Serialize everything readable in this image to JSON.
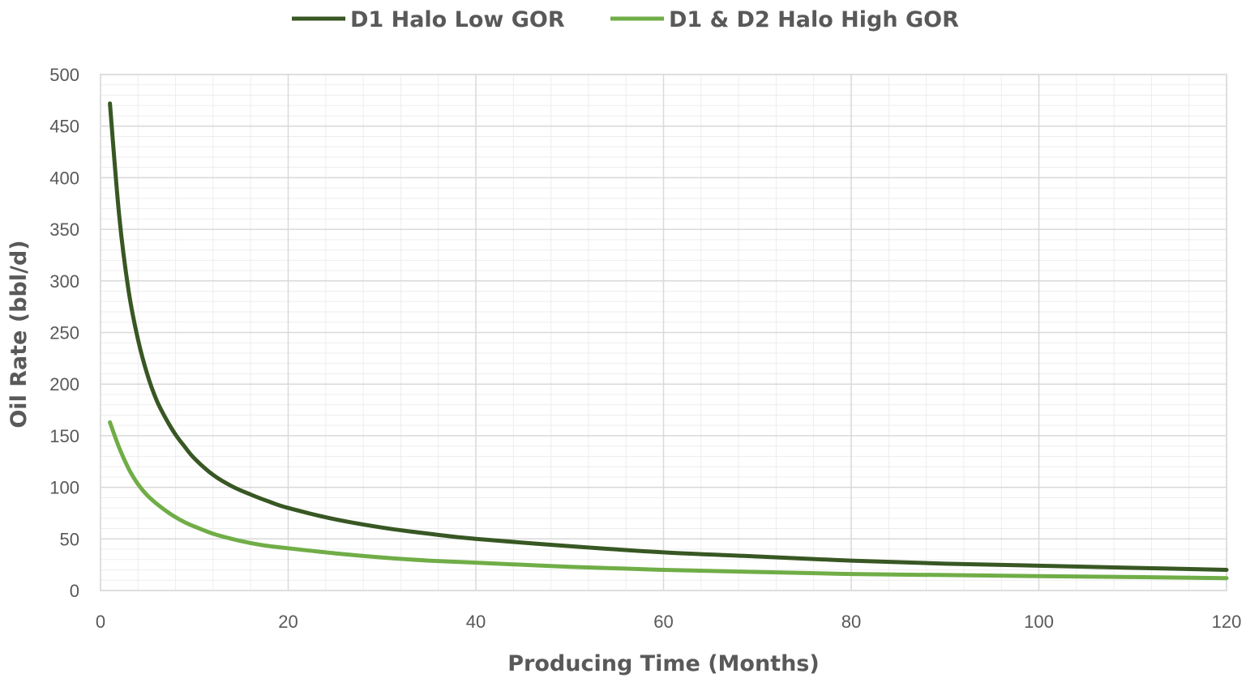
{
  "chart_data": {
    "type": "line",
    "title": "",
    "xlabel": "Producing Time (Months)",
    "ylabel": "Oil Rate (bbl/d)",
    "xlim": [
      0,
      120
    ],
    "ylim": [
      0,
      500
    ],
    "x_ticks": [
      0,
      20,
      40,
      60,
      80,
      100,
      120
    ],
    "y_ticks": [
      0,
      50,
      100,
      150,
      200,
      250,
      300,
      350,
      400,
      450,
      500
    ],
    "grid": true,
    "legend_position": "top",
    "series": [
      {
        "name": "D1 Halo Low GOR",
        "color": "#385723",
        "x": [
          1,
          2,
          3,
          4,
          5,
          6,
          7,
          8,
          9,
          10,
          12,
          14,
          16,
          18,
          20,
          25,
          30,
          35,
          40,
          50,
          60,
          70,
          80,
          90,
          100,
          110,
          120
        ],
        "y": [
          472,
          362,
          290,
          243,
          209,
          184,
          166,
          151,
          139,
          128,
          112,
          101,
          93,
          86,
          80,
          69,
          61,
          55,
          50,
          43,
          37,
          33,
          29,
          26,
          24,
          22,
          20
        ]
      },
      {
        "name": "D1 & D2 Halo High GOR",
        "color": "#70ad47",
        "x": [
          1,
          2,
          3,
          4,
          5,
          6,
          7,
          8,
          9,
          10,
          12,
          14,
          16,
          18,
          20,
          25,
          30,
          35,
          40,
          50,
          60,
          70,
          80,
          90,
          100,
          110,
          120
        ],
        "y": [
          163,
          138,
          118,
          103,
          92,
          84,
          77,
          71,
          66,
          62,
          55,
          50,
          46,
          43,
          41,
          36,
          32,
          29,
          27,
          23,
          20,
          18,
          16,
          15,
          14,
          13,
          12
        ]
      }
    ]
  }
}
